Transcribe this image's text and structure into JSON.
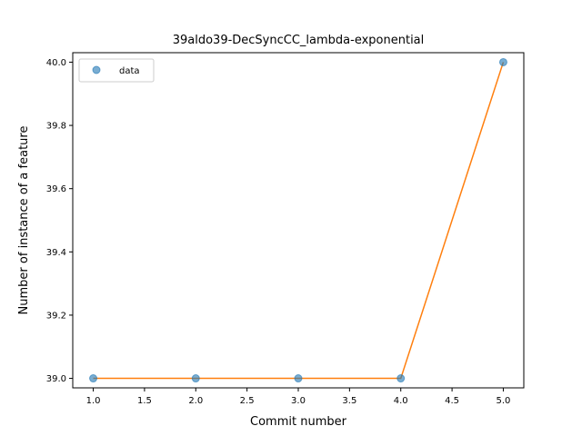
{
  "chart_data": {
    "type": "scatter",
    "title": "39aldo39-DecSyncCC_lambda-exponential",
    "xlabel": "Commit number",
    "ylabel": "Number of instance of a feature",
    "xlim": [
      0.8,
      5.2
    ],
    "ylim": [
      38.97,
      40.03
    ],
    "x_ticks": [
      "1.0",
      "1.5",
      "2.0",
      "2.5",
      "3.0",
      "3.5",
      "4.0",
      "4.5",
      "5.0"
    ],
    "y_ticks": [
      "39.0",
      "39.2",
      "39.4",
      "39.6",
      "39.8",
      "40.0"
    ],
    "grid": false,
    "legend": {
      "position": "top-left",
      "entries": [
        "data"
      ]
    },
    "series": [
      {
        "name": "data",
        "kind": "points",
        "color": "#1f77b4",
        "x": [
          1,
          2,
          3,
          4,
          5
        ],
        "y": [
          39.0,
          39.0,
          39.0,
          39.0,
          40.0
        ]
      },
      {
        "kind": "line",
        "color": "#ff7f0e",
        "x": [
          1,
          2,
          3,
          4,
          5
        ],
        "y": [
          39.0,
          39.0,
          39.0,
          39.0,
          40.0
        ]
      }
    ]
  }
}
